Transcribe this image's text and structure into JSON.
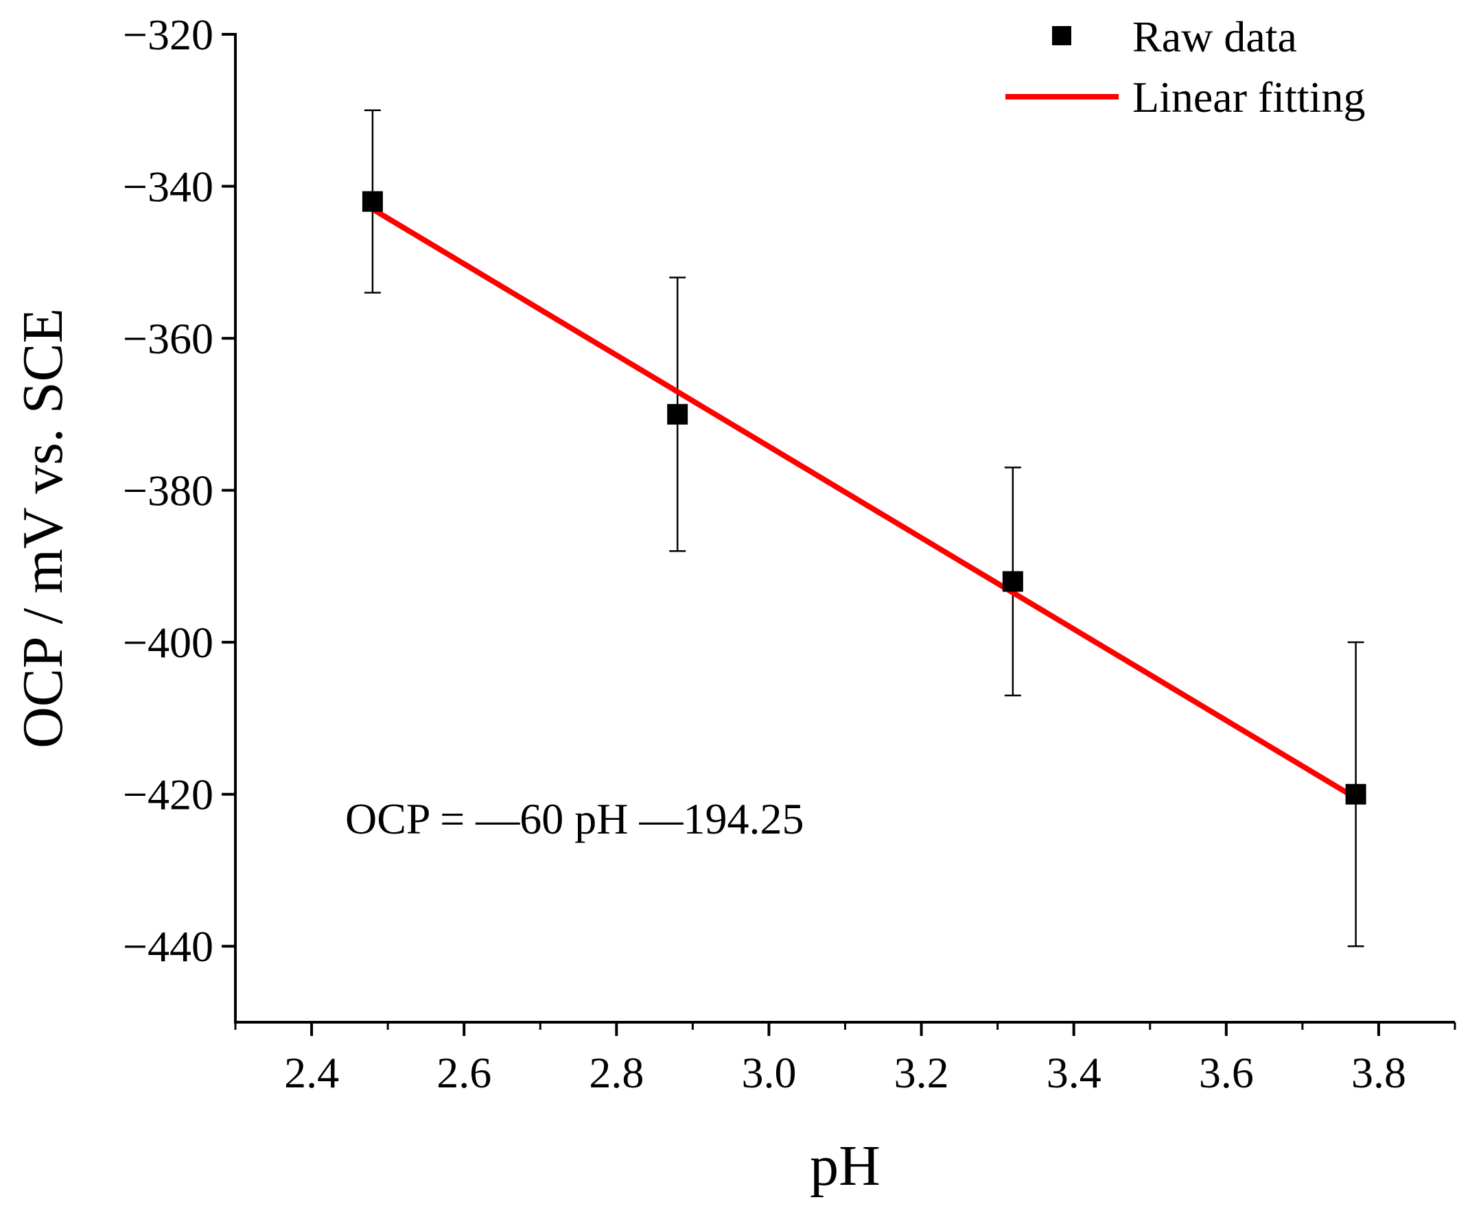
{
  "chart_data": {
    "type": "scatter",
    "title": "",
    "xlabel": "pH",
    "ylabel": "OCP / mV vs. SCE",
    "xlim": [
      2.3,
      3.9
    ],
    "ylim": [
      -450,
      -320
    ],
    "x_ticks": [
      2.4,
      2.6,
      2.8,
      3.0,
      3.2,
      3.4,
      3.6,
      3.8
    ],
    "x_tick_labels": [
      "2.4",
      "2.6",
      "2.8",
      "3.0",
      "3.2",
      "3.4",
      "3.6",
      "3.8"
    ],
    "y_ticks": [
      -320,
      -340,
      -360,
      -380,
      -400,
      -420,
      -440
    ],
    "y_tick_labels": [
      "−320",
      "−340",
      "−360",
      "−380",
      "−400",
      "−420",
      "−440"
    ],
    "grid": false,
    "legend": {
      "position": "top-right",
      "entries": [
        "Raw data",
        "Linear fitting"
      ]
    },
    "series": [
      {
        "name": "Raw data",
        "kind": "scatter",
        "marker": "square",
        "color": "#000000",
        "x": [
          2.48,
          2.88,
          3.32,
          3.77
        ],
        "y": [
          -342,
          -370,
          -392,
          -420
        ],
        "y_err_low": [
          -354,
          -388,
          -407,
          -440
        ],
        "y_err_high": [
          -330,
          -352,
          -377,
          -400
        ]
      },
      {
        "name": "Linear fitting",
        "kind": "line",
        "color": "#ff0000",
        "x": [
          2.48,
          3.77
        ],
        "y": [
          -343,
          -420.5
        ]
      }
    ],
    "annotations": [
      "OCP = —60 pH —194.25"
    ]
  }
}
